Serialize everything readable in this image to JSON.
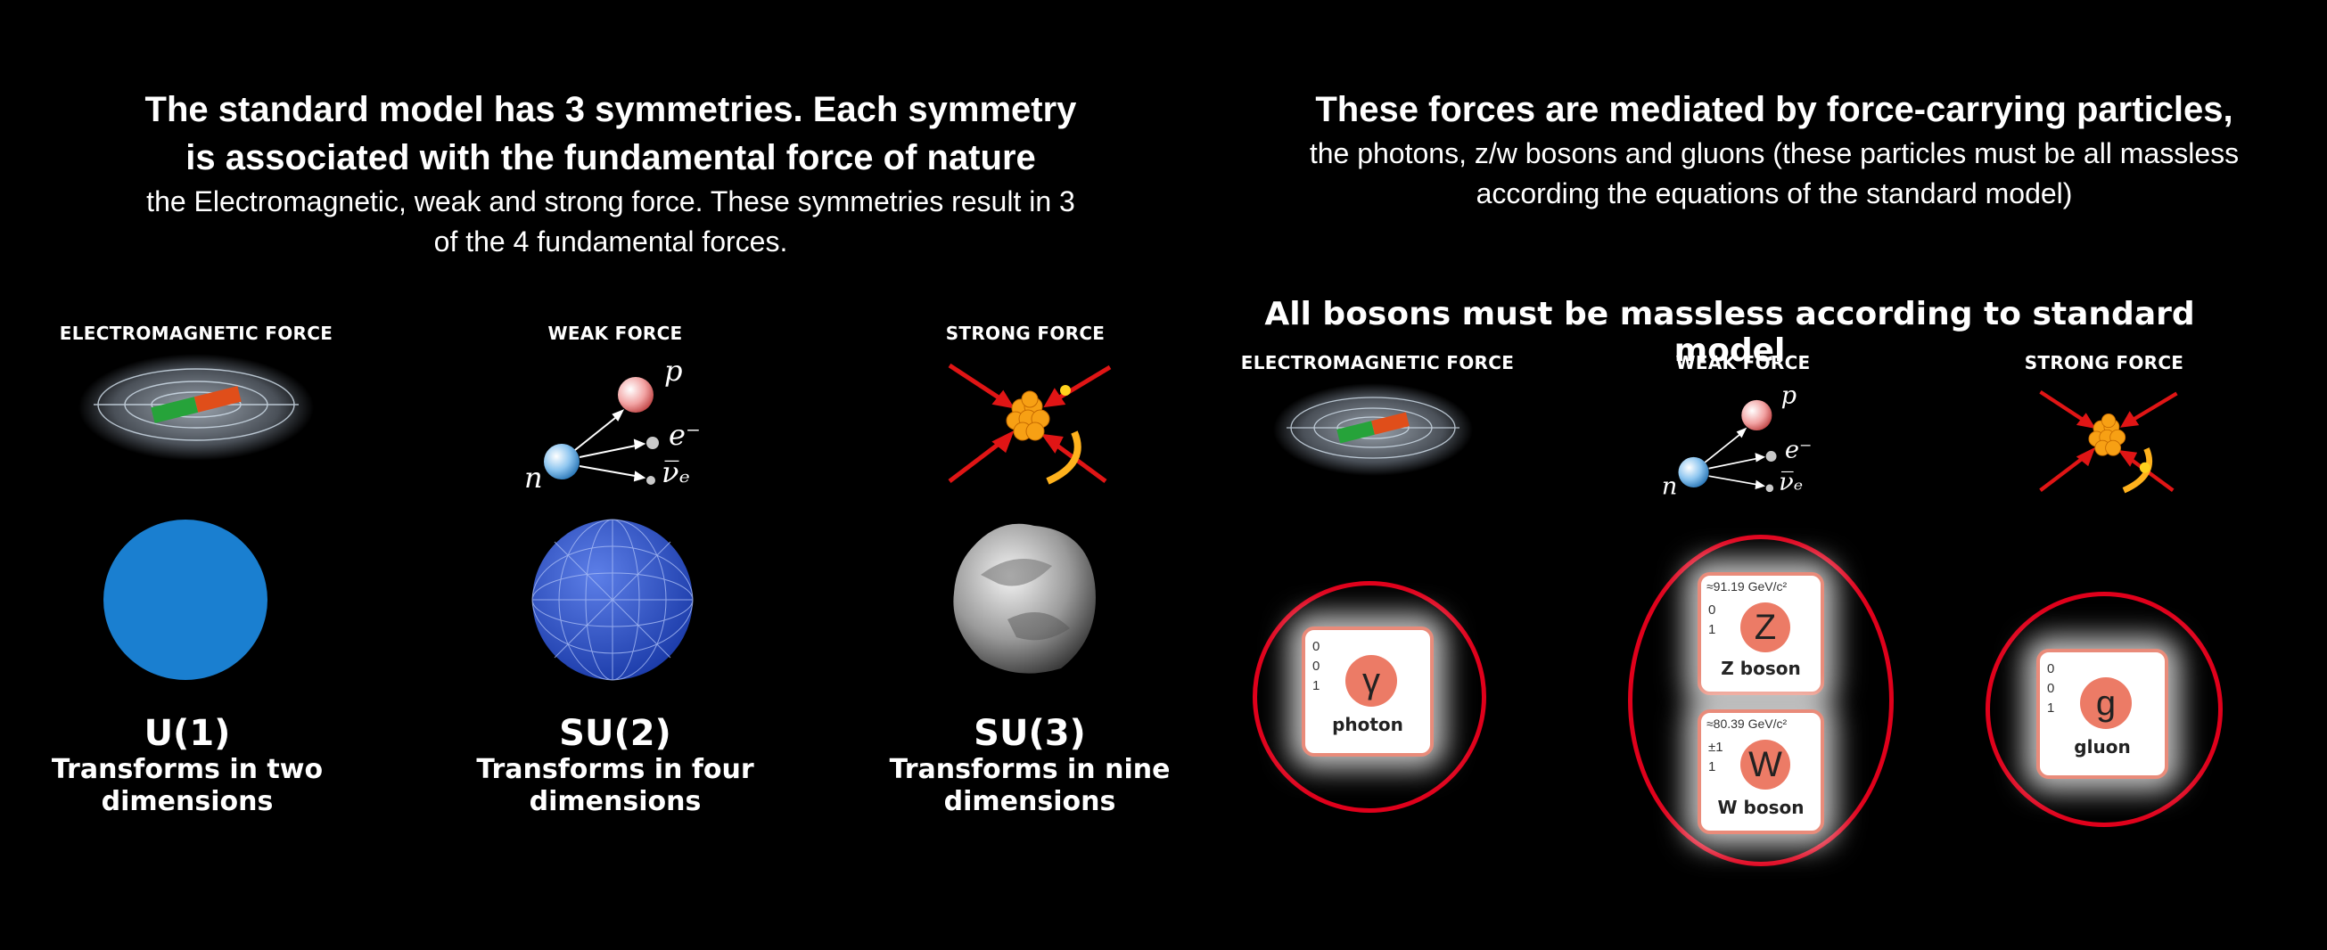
{
  "left": {
    "title_line1": "The standard model has 3 symmetries. Each symmetry",
    "title_line2": "is associated with the fundamental force of nature",
    "sub_line1": "the Electromagnetic, weak and strong force. These symmetries result in 3",
    "sub_line2": "of the 4 fundamental forces.",
    "columns": [
      {
        "label": "ELECTROMAGNETIC FORCE",
        "group": "U(1)",
        "desc1": "Transforms in two",
        "desc2": "dimensions"
      },
      {
        "label": "WEAK FORCE",
        "group": "SU(2)",
        "desc1": "Transforms in four",
        "desc2": "dimensions"
      },
      {
        "label": "STRONG FORCE",
        "group": "SU(3)",
        "desc1": "Transforms in nine",
        "desc2": "dimensions"
      }
    ]
  },
  "right": {
    "title_line1": "These forces are mediated by force-carrying particles,",
    "sub_line1": "the photons, z/w bosons and gluons (these particles must be all massless",
    "sub_line2": "according the equations of the standard model)",
    "heading": "All bosons must be massless according to standard model",
    "columns": [
      {
        "label": "ELECTROMAGNETIC FORCE"
      },
      {
        "label": "WEAK FORCE"
      },
      {
        "label": "STRONG FORCE"
      }
    ],
    "cards": {
      "photon": {
        "symbol": "γ",
        "name": "photon",
        "charge": "0",
        "spin_a": "0",
        "spin_b": "1"
      },
      "z": {
        "symbol": "Z",
        "name": "Z boson",
        "mass": "≈91.19 GeV/c²",
        "charge": "0",
        "spin": "1"
      },
      "w": {
        "symbol": "W",
        "name": "W boson",
        "mass": "≈80.39 GeV/c²",
        "charge": "±1",
        "spin": "1"
      },
      "gluon": {
        "symbol": "g",
        "name": "gluon",
        "charge": "0",
        "spin_a": "0",
        "spin_b": "1"
      }
    }
  },
  "decay_labels": {
    "p": "p",
    "e": "e⁻",
    "nu": "ν̅ₑ",
    "n": "n"
  },
  "colors": {
    "ring": "#e0001b",
    "card_border": "#e98b7a",
    "card_circle": "#ec7b66",
    "u1_sphere": "#1a7fd0"
  }
}
